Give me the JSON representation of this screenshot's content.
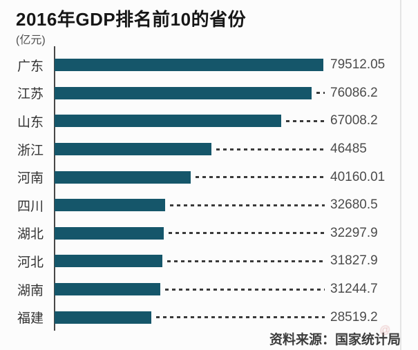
{
  "header": {
    "title": "2016年GDP排名前10的省份",
    "unit_label": "(亿元)"
  },
  "chart_data": {
    "type": "bar",
    "orientation": "horizontal",
    "title": "2016年GDP排名前10的省份",
    "unit": "亿元",
    "categories": [
      "广东",
      "江苏",
      "山东",
      "浙江",
      "河南",
      "四川",
      "湖北",
      "河北",
      "湖南",
      "福建"
    ],
    "values": [
      79512.05,
      76086.2,
      67008.2,
      46485,
      40160.01,
      32680.5,
      32297.9,
      31827.9,
      31244.7,
      28519.2
    ],
    "value_labels": [
      "79512.05",
      "76086.2",
      "67008.2",
      "46485",
      "40160.01",
      "32680.5",
      "32297.9",
      "31827.9",
      "31244.7",
      "28519.2"
    ],
    "xlim": [
      0,
      79512.05
    ],
    "grid": false,
    "legend": false,
    "bar_color": "#15566a",
    "axis_color": "#474747",
    "connector_style": "dashed"
  },
  "footer": {
    "source_label": "资料来源：国家统计局",
    "watermark_icon": "scribble-watermark",
    "watermark_text": "@"
  }
}
